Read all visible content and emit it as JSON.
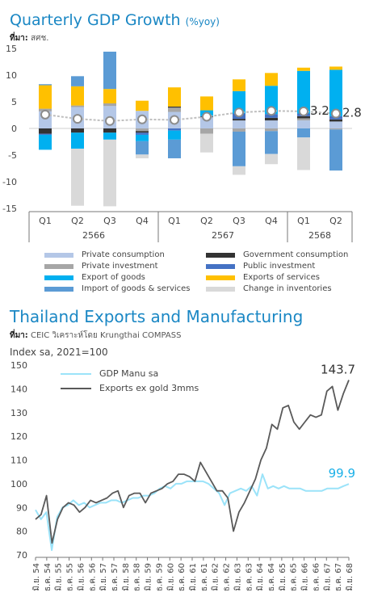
{
  "chart1": {
    "title": "Quarterly GDP Growth",
    "title_unit": "(%yoy)",
    "source_label": "ที่มา:",
    "source_text": "สศช."
  },
  "chart2": {
    "title": "Thailand Exports and Manufacturing",
    "source_label": "ที่มา:",
    "source_text": "CEIC วิเคราะห์โดย Krungthai COMPASS",
    "ylabel": "Index sa, 2021=100"
  },
  "colors": {
    "private_consumption": "#b4c7e7",
    "private_investment": "#a6a6a6",
    "export_of_goods": "#00b0f0",
    "import_of_goods_services": "#5b9bd5",
    "government_consumption": "#333333",
    "public_investment": "#4472c4",
    "exports_of_services": "#ffc000",
    "change_in_inventories": "#d9d9d9",
    "gdp_line": "#bfbfbf",
    "gdp_manu": "#9be3f9",
    "exports_ex_gold": "#595959",
    "label_last_manu": "#1ab0e8"
  },
  "chart_data": [
    {
      "type": "bar",
      "title": "Quarterly GDP Growth",
      "unit": "(%yoy)",
      "categories": [
        "Q1",
        "Q2",
        "Q3",
        "Q4",
        "Q1",
        "Q2",
        "Q3",
        "Q4",
        "Q1",
        "Q2"
      ],
      "groups": [
        {
          "label": "2566",
          "span": [
            0,
            3
          ]
        },
        {
          "label": "2567",
          "span": [
            4,
            7
          ]
        },
        {
          "label": "2568",
          "span": [
            8,
            9
          ]
        }
      ],
      "ylim": [
        -15,
        15
      ],
      "yticks": [
        -15,
        -10,
        -5,
        0,
        5,
        10,
        15
      ],
      "series": [
        {
          "name": "Private consumption",
          "color_key": "private_consumption",
          "values": [
            3.2,
            4.0,
            4.2,
            3.3,
            3.1,
            2.1,
            1.5,
            1.5,
            1.5,
            1.3
          ]
        },
        {
          "name": "Private investment",
          "color_key": "private_investment",
          "values": [
            0.5,
            0.3,
            0.5,
            -0.5,
            0.8,
            -1.0,
            -0.6,
            -0.5,
            0.4,
            -0.2
          ]
        },
        {
          "name": "Government consumption",
          "color_key": "government_consumption",
          "values": [
            -1.0,
            -0.8,
            -0.8,
            -0.3,
            0.2,
            0.1,
            0.3,
            0.5,
            0.4,
            0.4
          ]
        },
        {
          "name": "Public investment",
          "color_key": "public_investment",
          "values": [
            -0.2,
            0.0,
            0.0,
            -0.4,
            -0.4,
            0.1,
            1.0,
            0.7,
            0.5,
            0.6
          ]
        },
        {
          "name": "Export of goods",
          "color_key": "export_of_goods",
          "values": [
            -2.8,
            -3.0,
            -1.3,
            -1.2,
            -1.7,
            1.1,
            4.2,
            5.3,
            8.0,
            8.7
          ]
        },
        {
          "name": "Exports of services",
          "color_key": "exports_of_services",
          "values": [
            4.4,
            3.6,
            2.7,
            1.9,
            3.6,
            2.6,
            2.2,
            2.4,
            0.6,
            0.6
          ]
        },
        {
          "name": "Import of goods & services",
          "color_key": "import_of_goods_services",
          "values": [
            0.2,
            1.9,
            7.0,
            -2.5,
            -3.5,
            0.0,
            -6.5,
            -4.3,
            -1.7,
            -7.7
          ]
        },
        {
          "name": "Change in inventories",
          "color_key": "change_in_inventories",
          "values": [
            0.0,
            -10.7,
            -12.5,
            -0.7,
            0.0,
            -3.5,
            -1.6,
            -1.9,
            -6.1,
            0.0
          ]
        }
      ],
      "line": {
        "name": "GDP",
        "values": [
          2.6,
          1.8,
          1.4,
          1.7,
          1.6,
          2.2,
          3.0,
          3.3,
          3.2,
          2.8
        ]
      },
      "annotations": [
        {
          "index": 8,
          "text": "3.2"
        },
        {
          "index": 9,
          "text": "2.8"
        }
      ]
    },
    {
      "type": "line",
      "title": "Thailand Exports and Manufacturing",
      "ylabel": "Index sa, 2021=100",
      "ylim": [
        70,
        150
      ],
      "yticks": [
        70,
        80,
        90,
        100,
        110,
        120,
        130,
        140,
        150
      ],
      "x_tick_labels": [
        "มิ.ย. 54",
        "ธ.ค. 54",
        "มิ.ย. 55",
        "ธ.ค. 55",
        "มิ.ย. 56",
        "ธ.ค. 56",
        "มิ.ย. 57",
        "ธ.ค. 57",
        "มิ.ย. 58",
        "ธ.ค. 58",
        "มิ.ย. 59",
        "ธ.ค. 59",
        "มิ.ย. 60",
        "ธ.ค. 60",
        "มิ.ย. 61",
        "ธ.ค. 61",
        "มิ.ย. 62",
        "ธ.ค. 62",
        "มิ.ย. 63",
        "ธ.ค. 63",
        "มิ.ย. 64",
        "ธ.ค. 64",
        "มิ.ย. 65",
        "ธ.ค. 65",
        "มิ.ย. 66",
        "ธ.ค. 66",
        "มิ.ย. 67",
        "ธ.ค. 67",
        "มิ.ย. 68"
      ],
      "series": [
        {
          "name": "GDP Manu sa",
          "color_key": "gdp_manu",
          "values": [
            89,
            85,
            88,
            72,
            86,
            90,
            91,
            93,
            91,
            92,
            90,
            91,
            92,
            92,
            93,
            93,
            92,
            93,
            94,
            94,
            95,
            95,
            96,
            98,
            99,
            98,
            100,
            100,
            101,
            101,
            101,
            101,
            100,
            98,
            96,
            91,
            96,
            97,
            98,
            97,
            99,
            95,
            104,
            98,
            99,
            98,
            99,
            98,
            98,
            98,
            97,
            97,
            97,
            97,
            98,
            98,
            98,
            99,
            99.9
          ]
        },
        {
          "name": "Exports ex gold 3mms",
          "color_key": "exports_ex_gold",
          "values": [
            85,
            87,
            95,
            75,
            85,
            90,
            92,
            91,
            88,
            90,
            93,
            92,
            93,
            94,
            96,
            97,
            90,
            95,
            96,
            96,
            92,
            96,
            97,
            98,
            100,
            101,
            104,
            104,
            103,
            101,
            109,
            105,
            101,
            97,
            97,
            94,
            80,
            88,
            92,
            97,
            102,
            110,
            115,
            125,
            123,
            132,
            133,
            126,
            123,
            126,
            129,
            128,
            129,
            139,
            141,
            131,
            138,
            143.7
          ]
        }
      ],
      "annotations": [
        {
          "series": "GDP Manu sa",
          "text": "99.9"
        },
        {
          "series": "Exports ex gold 3mms",
          "text": "143.7"
        }
      ]
    }
  ]
}
